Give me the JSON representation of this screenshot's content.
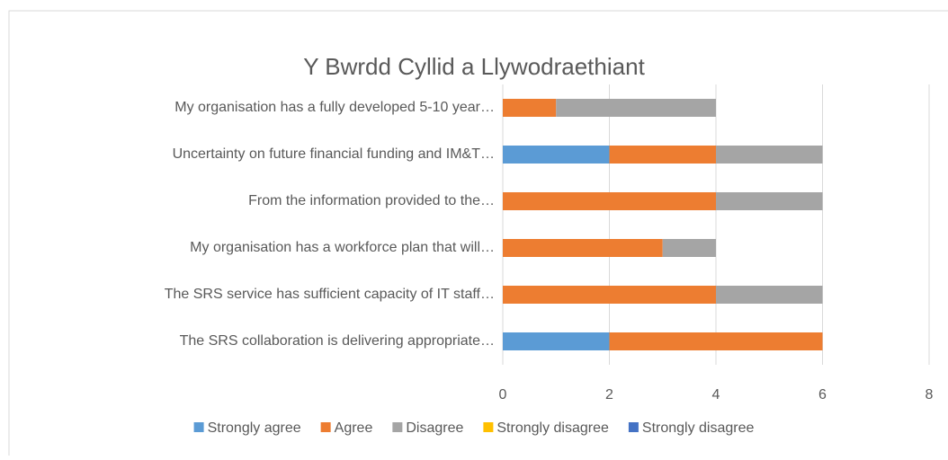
{
  "chart_data": {
    "type": "stacked-bar-horizontal",
    "title": "Y Bwrdd Cyllid a Llywodraethiant",
    "categories": [
      "My organisation has a fully developed 5-10 year…",
      "Uncertainty on future financial funding and IM&T…",
      "From the information provided to the…",
      "My organisation has a workforce plan that will…",
      "The SRS service has sufficient capacity of IT staff…",
      "The SRS collaboration is delivering appropriate…"
    ],
    "series": [
      {
        "name": "Strongly agree",
        "color": "#5b9bd5",
        "values": [
          0,
          2,
          0,
          0,
          0,
          2
        ]
      },
      {
        "name": "Agree",
        "color": "#ed7d31",
        "values": [
          1,
          2,
          4,
          3,
          4,
          4
        ]
      },
      {
        "name": "Disagree",
        "color": "#a5a5a5",
        "values": [
          3,
          2,
          2,
          1,
          2,
          0
        ]
      },
      {
        "name": "Strongly disagree",
        "color": "#ffc000",
        "values": [
          0,
          0,
          0,
          0,
          0,
          0
        ]
      },
      {
        "name": "Strongly disagree",
        "color": "#4472c4",
        "values": [
          0,
          0,
          0,
          0,
          0,
          0
        ]
      }
    ],
    "xlim": [
      0,
      8
    ],
    "xticks": [
      0,
      2,
      4,
      6,
      8
    ],
    "grid": true,
    "legend": "bottom"
  }
}
